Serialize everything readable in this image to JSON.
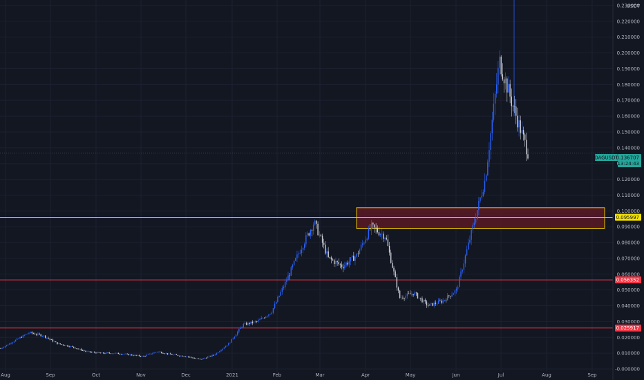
{
  "chart_data": {
    "type": "candlestick",
    "currency": "USDT",
    "symbol": "DAGUSDT",
    "countdown": "13:24:43",
    "x_labels": [
      "Aug",
      "Sep",
      "Oct",
      "Nov",
      "Dec",
      "2021",
      "Feb",
      "Mar",
      "Apr",
      "May",
      "Jun",
      "Jul",
      "Aug",
      "Sep"
    ],
    "y_ticks": [
      "0.230000",
      "0.220000",
      "0.210000",
      "0.200000",
      "0.190000",
      "0.180000",
      "0.170000",
      "0.160000",
      "0.150000",
      "0.140000",
      "0.130000",
      "0.120000",
      "0.110000",
      "0.100000",
      "0.090000",
      "0.080000",
      "0.070000",
      "0.060000",
      "0.050000",
      "0.040000",
      "0.030000",
      "0.020000",
      "0.010000",
      "0.000000"
    ],
    "ylim": [
      0,
      0.235
    ],
    "last_price": "0.136707",
    "last_price_value": 0.136707,
    "horizontal_lines": [
      {
        "label": "0.095997",
        "value": 0.095997,
        "color": "#f5e300",
        "badge_bg": "#f5e300",
        "badge_fg": "#131722"
      },
      {
        "label": "0.056352",
        "value": 0.056352,
        "color": "#f23645",
        "badge_bg": "#f23645",
        "badge_fg": "#ffffff"
      },
      {
        "label": "0.025917",
        "value": 0.025917,
        "color": "#f23645",
        "badge_bg": "#f23645",
        "badge_fg": "#ffffff"
      }
    ],
    "zone": {
      "from_month": "Mar",
      "to_month": "Sep",
      "low": 0.089,
      "high": 0.102,
      "fill": "#5a1a24",
      "stroke": "#e6c200"
    },
    "price_path": [
      {
        "month": "Aug 2020",
        "close": 0.013
      },
      {
        "month": "Aug 2020",
        "close": 0.018
      },
      {
        "month": "Aug 2020",
        "close": 0.023
      },
      {
        "month": "Sep 2020",
        "close": 0.021
      },
      {
        "month": "Sep 2020",
        "close": 0.016
      },
      {
        "month": "Sep 2020",
        "close": 0.014
      },
      {
        "month": "Oct 2020",
        "close": 0.011
      },
      {
        "month": "Oct 2020",
        "close": 0.01
      },
      {
        "month": "Nov 2020",
        "close": 0.01
      },
      {
        "month": "Nov 2020",
        "close": 0.009
      },
      {
        "month": "Dec 2020",
        "close": 0.008
      },
      {
        "month": "Dec 2020",
        "close": 0.011
      },
      {
        "month": "Dec 2020",
        "close": 0.009
      },
      {
        "month": "Jan 2021",
        "close": 0.008
      },
      {
        "month": "Jan 2021",
        "close": 0.006
      },
      {
        "month": "Jan 2021",
        "close": 0.009
      },
      {
        "month": "Feb 2021",
        "close": 0.016
      },
      {
        "month": "Feb 2021",
        "close": 0.028
      },
      {
        "month": "Feb 2021",
        "close": 0.03
      },
      {
        "month": "Mar 2021",
        "close": 0.036
      },
      {
        "month": "Mar 2021",
        "close": 0.055
      },
      {
        "month": "Mar 2021",
        "close": 0.075
      },
      {
        "month": "Apr 2021",
        "close": 0.093
      },
      {
        "month": "Apr 2021",
        "close": 0.07
      },
      {
        "month": "Apr 2021",
        "close": 0.065
      },
      {
        "month": "Apr 2021",
        "close": 0.072
      },
      {
        "month": "May 2021",
        "close": 0.09
      },
      {
        "month": "May 2021",
        "close": 0.084
      },
      {
        "month": "May 2021",
        "close": 0.045
      },
      {
        "month": "Jun 2021",
        "close": 0.048
      },
      {
        "month": "Jun 2021",
        "close": 0.04
      },
      {
        "month": "Jun 2021",
        "close": 0.043
      },
      {
        "month": "Jun 2021",
        "close": 0.05
      },
      {
        "month": "Jul 2021",
        "close": 0.085
      },
      {
        "month": "Jul 2021",
        "close": 0.12
      },
      {
        "month": "Jul 2021",
        "close": 0.195
      },
      {
        "month": "Jul 2021",
        "close": 0.165
      },
      {
        "month": "Jul 2021",
        "close": 0.137
      }
    ],
    "colors": {
      "background": "#131722",
      "grid": "#1f2433",
      "up": "#2962ff",
      "down": "#d1d4dc",
      "text": "#b2b5be",
      "last_price": "#26a69a"
    }
  }
}
